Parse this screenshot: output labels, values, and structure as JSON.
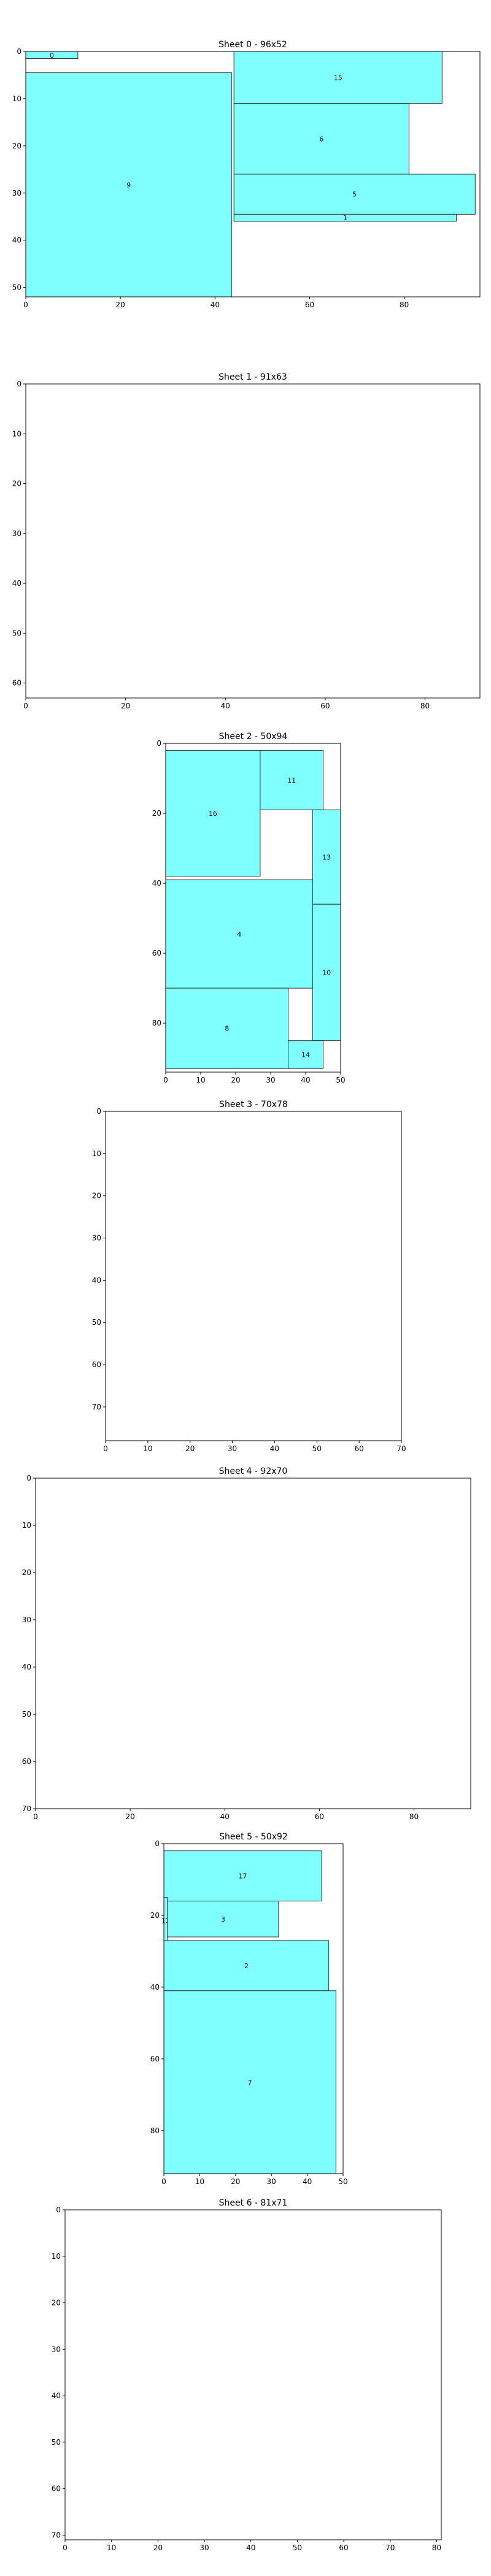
{
  "figure": {
    "background": "#ffffff",
    "colors": {
      "piece_fill": "#80ffff",
      "piece_edge": "#333333",
      "axes_edge": "#000000"
    }
  },
  "chart_data": [
    {
      "type": "packing_layout",
      "title": "Sheet 0 - 96x52",
      "sheet": 0,
      "width": 96,
      "height": 52,
      "xlim": [
        0,
        96
      ],
      "ylim": [
        52,
        0
      ],
      "y_inverted": true,
      "xticks": [
        0,
        20,
        40,
        60,
        80
      ],
      "yticks": [
        0,
        10,
        20,
        30,
        40,
        50
      ],
      "pieces": [
        {
          "id": "0",
          "x": 0,
          "y": 0,
          "w": 11,
          "h": 1.5
        },
        {
          "id": "9",
          "x": 0,
          "y": 4.5,
          "w": 43.5,
          "h": 47.5
        },
        {
          "id": "15",
          "x": 44,
          "y": 0,
          "w": 44,
          "h": 11
        },
        {
          "id": "6",
          "x": 44,
          "y": 11,
          "w": 37,
          "h": 15
        },
        {
          "id": "5",
          "x": 44,
          "y": 26,
          "w": 51,
          "h": 8.5
        },
        {
          "id": "1",
          "x": 44,
          "y": 34.5,
          "w": 47,
          "h": 1.5
        }
      ]
    },
    {
      "type": "packing_layout",
      "title": "Sheet 1 - 91x63",
      "sheet": 1,
      "width": 91,
      "height": 63,
      "xlim": [
        0,
        91
      ],
      "ylim": [
        63,
        0
      ],
      "y_inverted": true,
      "xticks": [
        0,
        20,
        40,
        60,
        80
      ],
      "yticks": [
        0,
        10,
        20,
        30,
        40,
        50,
        60
      ],
      "pieces": []
    },
    {
      "type": "packing_layout",
      "title": "Sheet 2 - 50x94",
      "sheet": 2,
      "width": 50,
      "height": 94,
      "xlim": [
        0,
        50
      ],
      "ylim": [
        94,
        0
      ],
      "y_inverted": true,
      "xticks": [
        0,
        10,
        20,
        30,
        40,
        50
      ],
      "yticks": [
        0,
        20,
        40,
        60,
        80
      ],
      "pieces": [
        {
          "id": "16",
          "x": 0,
          "y": 2,
          "w": 27,
          "h": 36
        },
        {
          "id": "11",
          "x": 27,
          "y": 2,
          "w": 18,
          "h": 17
        },
        {
          "id": "13",
          "x": 42,
          "y": 19,
          "w": 8,
          "h": 27
        },
        {
          "id": "4",
          "x": 0,
          "y": 39,
          "w": 42,
          "h": 31
        },
        {
          "id": "10",
          "x": 42,
          "y": 46,
          "w": 8,
          "h": 39
        },
        {
          "id": "8",
          "x": 0,
          "y": 70,
          "w": 35,
          "h": 23
        },
        {
          "id": "14",
          "x": 35,
          "y": 85,
          "w": 10,
          "h": 8
        }
      ]
    },
    {
      "type": "packing_layout",
      "title": "Sheet 3 - 70x78",
      "sheet": 3,
      "width": 70,
      "height": 78,
      "xlim": [
        0,
        70
      ],
      "ylim": [
        78,
        0
      ],
      "y_inverted": true,
      "xticks": [
        0,
        10,
        20,
        30,
        40,
        50,
        60,
        70
      ],
      "yticks": [
        0,
        10,
        20,
        30,
        40,
        50,
        60,
        70
      ],
      "pieces": []
    },
    {
      "type": "packing_layout",
      "title": "Sheet 4 - 92x70",
      "sheet": 4,
      "width": 92,
      "height": 70,
      "xlim": [
        0,
        92
      ],
      "ylim": [
        70,
        0
      ],
      "y_inverted": true,
      "xticks": [
        0,
        20,
        40,
        60,
        80
      ],
      "yticks": [
        0,
        10,
        20,
        30,
        40,
        50,
        60,
        70
      ],
      "pieces": []
    },
    {
      "type": "packing_layout",
      "title": "Sheet 5 - 50x92",
      "sheet": 5,
      "width": 50,
      "height": 92,
      "xlim": [
        0,
        50
      ],
      "ylim": [
        92,
        0
      ],
      "y_inverted": true,
      "xticks": [
        0,
        10,
        20,
        30,
        40,
        50
      ],
      "yticks": [
        0,
        20,
        40,
        60,
        80
      ],
      "pieces": [
        {
          "id": "17",
          "x": 0,
          "y": 2,
          "w": 44,
          "h": 14
        },
        {
          "id": "12",
          "x": 0,
          "y": 15,
          "w": 1,
          "h": 13
        },
        {
          "id": "3",
          "x": 1,
          "y": 16,
          "w": 31,
          "h": 10
        },
        {
          "id": "2",
          "x": 0,
          "y": 27,
          "w": 46,
          "h": 14
        },
        {
          "id": "7",
          "x": 0,
          "y": 41,
          "w": 48,
          "h": 51
        }
      ]
    },
    {
      "type": "packing_layout",
      "title": "Sheet 6 - 81x71",
      "sheet": 6,
      "width": 81,
      "height": 71,
      "xlim": [
        0,
        81
      ],
      "ylim": [
        71,
        0
      ],
      "y_inverted": true,
      "xticks": [
        0,
        10,
        20,
        30,
        40,
        50,
        60,
        70,
        80
      ],
      "yticks": [
        0,
        10,
        20,
        30,
        40,
        50,
        60,
        70
      ],
      "pieces": []
    }
  ]
}
